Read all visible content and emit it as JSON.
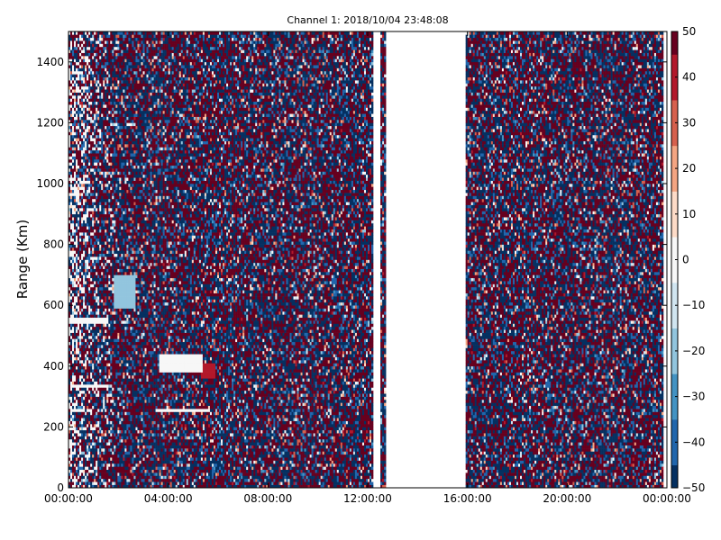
{
  "chart_data": {
    "type": "heatmap",
    "title": "Channel 1: 2018/10/04 23:48:08",
    "xlabel": "",
    "ylabel": "Range (Km)",
    "x_tick_labels": [
      "00:00:00",
      "04:00:00",
      "08:00:00",
      "12:00:00",
      "16:00:00",
      "20:00:00",
      "00:00:00"
    ],
    "x_range_hours": [
      0,
      24
    ],
    "y_ticks": [
      0,
      200,
      400,
      600,
      800,
      1000,
      1200,
      1400
    ],
    "y_range": [
      0,
      1500
    ],
    "colorbar": {
      "ticks": [
        50,
        40,
        30,
        20,
        10,
        0,
        -10,
        -20,
        -30,
        -40,
        -50
      ],
      "range": [
        -50,
        50
      ],
      "colormap": "RdBu_r",
      "colors": [
        "#053061",
        "#2166ac",
        "#4393c3",
        "#92c5de",
        "#d1e5f0",
        "#f7f7f7",
        "#fddbc7",
        "#f4a582",
        "#d6604d",
        "#b2182b",
        "#67001f"
      ]
    },
    "data_gaps_hours": [
      [
        12.2,
        12.5
      ],
      [
        12.7,
        15.9
      ],
      [
        23.85,
        24
      ]
    ],
    "features": [
      {
        "type": "band",
        "t_start": 0,
        "t_end": 1.6,
        "range_start": 540,
        "range_end": 560,
        "value": -5
      },
      {
        "type": "band",
        "t_start": 0.1,
        "t_end": 1.6,
        "range_start": 330,
        "range_end": 340,
        "value": -5
      },
      {
        "type": "band",
        "t_start": 3.5,
        "t_end": 5.7,
        "range_start": 250,
        "range_end": 258,
        "value": -5
      },
      {
        "type": "blob",
        "t_start": 1.8,
        "t_end": 2.7,
        "range_start": 590,
        "range_end": 700,
        "value": -20
      },
      {
        "type": "blob",
        "t_start": 3.6,
        "t_end": 5.4,
        "range_start": 380,
        "range_end": 440,
        "value": -5
      },
      {
        "type": "blob",
        "t_start": 5.3,
        "t_end": 5.9,
        "range_start": 360,
        "range_end": 410,
        "value": 40
      }
    ]
  }
}
